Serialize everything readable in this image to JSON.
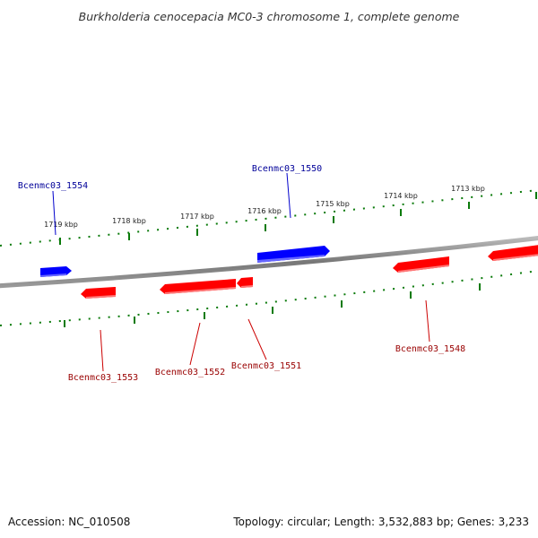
{
  "title": "Burkholderia cenocepacia MC0-3 chromosome 1, complete genome",
  "footer": {
    "accession": "Accession: NC_010508",
    "topology": "Topology: circular; Length: 3,532,883 bp; Genes: 3,233"
  },
  "colors": {
    "forward_gene": "#0000ff",
    "reverse_gene": "#ff0000",
    "ticks": "#007700",
    "backbone": "#888888"
  },
  "kbp_ticks": [
    {
      "label": "1719 kbp"
    },
    {
      "label": "1718 kbp"
    },
    {
      "label": "1717 kbp"
    },
    {
      "label": "1716 kbp"
    },
    {
      "label": "1715 kbp"
    },
    {
      "label": "1714 kbp"
    },
    {
      "label": "1713 kbp"
    }
  ],
  "genes": [
    {
      "name": "Bcenmc03_1554",
      "strand": "forward",
      "color": "blue"
    },
    {
      "name": "Bcenmc03_1550",
      "strand": "forward",
      "color": "blue"
    },
    {
      "name": "Bcenmc03_1553",
      "strand": "reverse",
      "color": "red"
    },
    {
      "name": "Bcenmc03_1552",
      "strand": "reverse",
      "color": "red"
    },
    {
      "name": "Bcenmc03_1551",
      "strand": "reverse",
      "color": "red"
    },
    {
      "name": "Bcenmc03_1548",
      "strand": "reverse",
      "color": "red"
    }
  ]
}
